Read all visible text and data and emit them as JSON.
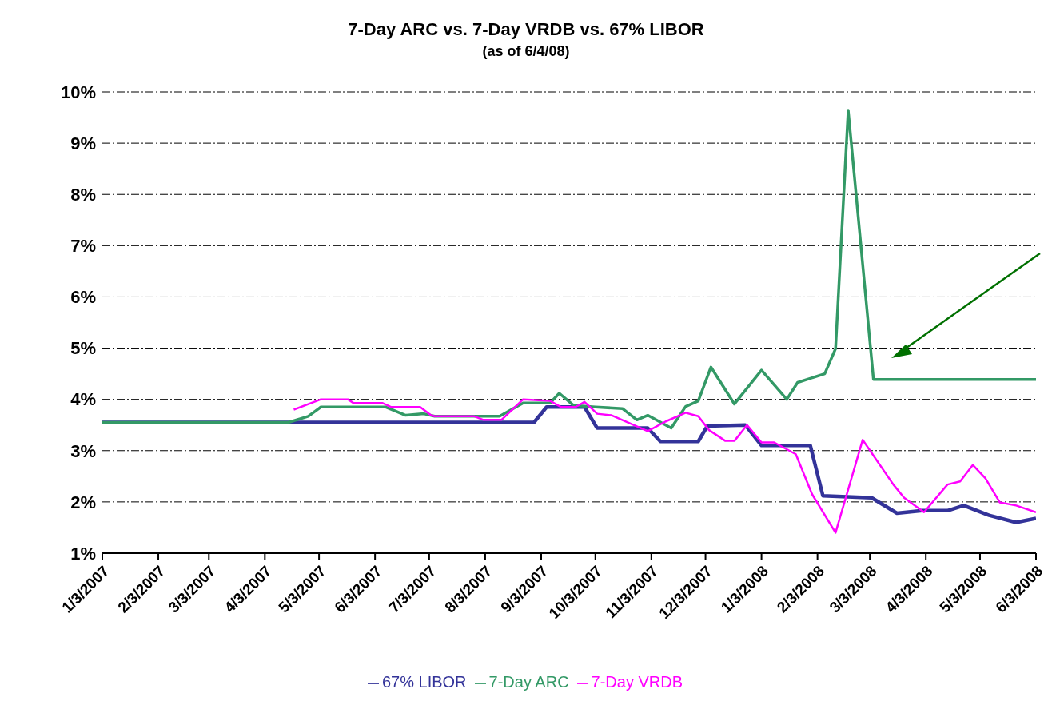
{
  "chart_data": {
    "type": "line",
    "title": "7-Day ARC vs. 7-Day VRDB vs. 67% LIBOR",
    "subtitle": "(as of 6/4/08)",
    "xlim": [
      "2007-01-03",
      "2008-06-03"
    ],
    "xticks": [
      {
        "value": "2007-01-03",
        "label": "1/3/2007"
      },
      {
        "value": "2007-02-03",
        "label": "2/3/2007"
      },
      {
        "value": "2007-03-03",
        "label": "3/3/2007"
      },
      {
        "value": "2007-04-03",
        "label": "4/3/2007"
      },
      {
        "value": "2007-05-03",
        "label": "5/3/2007"
      },
      {
        "value": "2007-06-03",
        "label": "6/3/2007"
      },
      {
        "value": "2007-07-03",
        "label": "7/3/2007"
      },
      {
        "value": "2007-08-03",
        "label": "8/3/2007"
      },
      {
        "value": "2007-09-03",
        "label": "9/3/2007"
      },
      {
        "value": "2007-10-03",
        "label": "10/3/2007"
      },
      {
        "value": "2007-11-03",
        "label": "11/3/2007"
      },
      {
        "value": "2007-12-03",
        "label": "12/3/2007"
      },
      {
        "value": "2008-01-03",
        "label": "1/3/2008"
      },
      {
        "value": "2008-02-03",
        "label": "2/3/2008"
      },
      {
        "value": "2008-03-03",
        "label": "3/3/2008"
      },
      {
        "value": "2008-04-03",
        "label": "4/3/2008"
      },
      {
        "value": "2008-05-03",
        "label": "5/3/2008"
      },
      {
        "value": "2008-06-03",
        "label": "6/3/2008"
      }
    ],
    "ylim": [
      1,
      10
    ],
    "yticks": [
      {
        "value": 1,
        "label": "1%"
      },
      {
        "value": 2,
        "label": "2%"
      },
      {
        "value": 3,
        "label": "3%"
      },
      {
        "value": 4,
        "label": "4%"
      },
      {
        "value": 5,
        "label": "5%"
      },
      {
        "value": 6,
        "label": "6%"
      },
      {
        "value": 7,
        "label": "7%"
      },
      {
        "value": 8,
        "label": "8%"
      },
      {
        "value": 9,
        "label": "9%"
      },
      {
        "value": 10,
        "label": "10%"
      }
    ],
    "grid": "y",
    "legend": "bottom",
    "marker": "none",
    "line_style": "solid",
    "series": [
      {
        "name": "67% LIBOR",
        "color": "#333399",
        "x": [
          "2007-01-03",
          "2007-08-30",
          "2007-09-06",
          "2007-09-27",
          "2007-10-04",
          "2007-11-01",
          "2007-11-08",
          "2007-11-29",
          "2007-12-04",
          "2007-12-25",
          "2008-01-03",
          "2008-01-30",
          "2008-02-06",
          "2008-03-04",
          "2008-03-18",
          "2008-04-01",
          "2008-04-15",
          "2008-04-24",
          "2008-05-08",
          "2008-05-23",
          "2008-06-03"
        ],
        "values": [
          3.55,
          3.55,
          3.85,
          3.85,
          3.44,
          3.44,
          3.18,
          3.18,
          3.48,
          3.5,
          3.1,
          3.1,
          2.12,
          2.08,
          1.78,
          1.83,
          1.83,
          1.93,
          1.74,
          1.6,
          1.68
        ]
      },
      {
        "name": "7-Day ARC",
        "color": "#339966",
        "x": [
          "2007-01-03",
          "2007-04-16",
          "2007-04-27",
          "2007-05-04",
          "2007-06-09",
          "2007-06-20",
          "2007-06-30",
          "2007-07-06",
          "2007-08-11",
          "2007-08-24",
          "2007-09-08",
          "2007-09-13",
          "2007-09-21",
          "2007-10-03",
          "2007-10-18",
          "2007-10-26",
          "2007-11-01",
          "2007-11-14",
          "2007-11-22",
          "2007-11-29",
          "2007-12-06",
          "2007-12-19",
          "2008-01-03",
          "2008-01-17",
          "2008-01-23",
          "2008-02-07",
          "2008-02-13",
          "2008-02-20",
          "2008-03-05",
          "2008-06-03"
        ],
        "values": [
          3.55,
          3.55,
          3.67,
          3.85,
          3.85,
          3.69,
          3.72,
          3.67,
          3.67,
          3.93,
          3.93,
          4.12,
          3.88,
          3.85,
          3.82,
          3.6,
          3.69,
          3.44,
          3.86,
          3.97,
          4.63,
          3.91,
          4.57,
          4.0,
          4.33,
          4.5,
          4.99,
          9.64,
          4.39,
          4.39
        ]
      },
      {
        "name": "7-Day VRDB",
        "color": "#ff00ff",
        "x": [
          "2007-04-19",
          "2007-05-04",
          "2007-05-19",
          "2007-05-22",
          "2007-06-07",
          "2007-06-12",
          "2007-06-28",
          "2007-07-04",
          "2007-07-06",
          "2007-07-28",
          "2007-08-02",
          "2007-08-12",
          "2007-08-24",
          "2007-09-08",
          "2007-09-14",
          "2007-09-22",
          "2007-09-27",
          "2007-10-04",
          "2007-10-12",
          "2007-11-01",
          "2007-11-11",
          "2007-11-22",
          "2007-11-29",
          "2007-12-05",
          "2007-12-14",
          "2007-12-19",
          "2007-12-26",
          "2008-01-03",
          "2008-01-10",
          "2008-01-22",
          "2008-01-31",
          "2008-02-13",
          "2008-02-28",
          "2008-03-16",
          "2008-03-22",
          "2008-04-02",
          "2008-04-15",
          "2008-04-22",
          "2008-04-29",
          "2008-05-06",
          "2008-05-14",
          "2008-05-23",
          "2008-06-03"
        ],
        "values": [
          3.8,
          4.0,
          4.0,
          3.93,
          3.93,
          3.85,
          3.85,
          3.69,
          3.67,
          3.67,
          3.6,
          3.6,
          4.0,
          3.97,
          3.85,
          3.85,
          3.95,
          3.72,
          3.69,
          3.38,
          3.57,
          3.74,
          3.67,
          3.4,
          3.19,
          3.19,
          3.5,
          3.16,
          3.16,
          2.93,
          2.15,
          1.4,
          3.21,
          2.34,
          2.08,
          1.8,
          2.34,
          2.4,
          2.72,
          2.46,
          1.99,
          1.93,
          1.8
        ]
      }
    ]
  }
}
